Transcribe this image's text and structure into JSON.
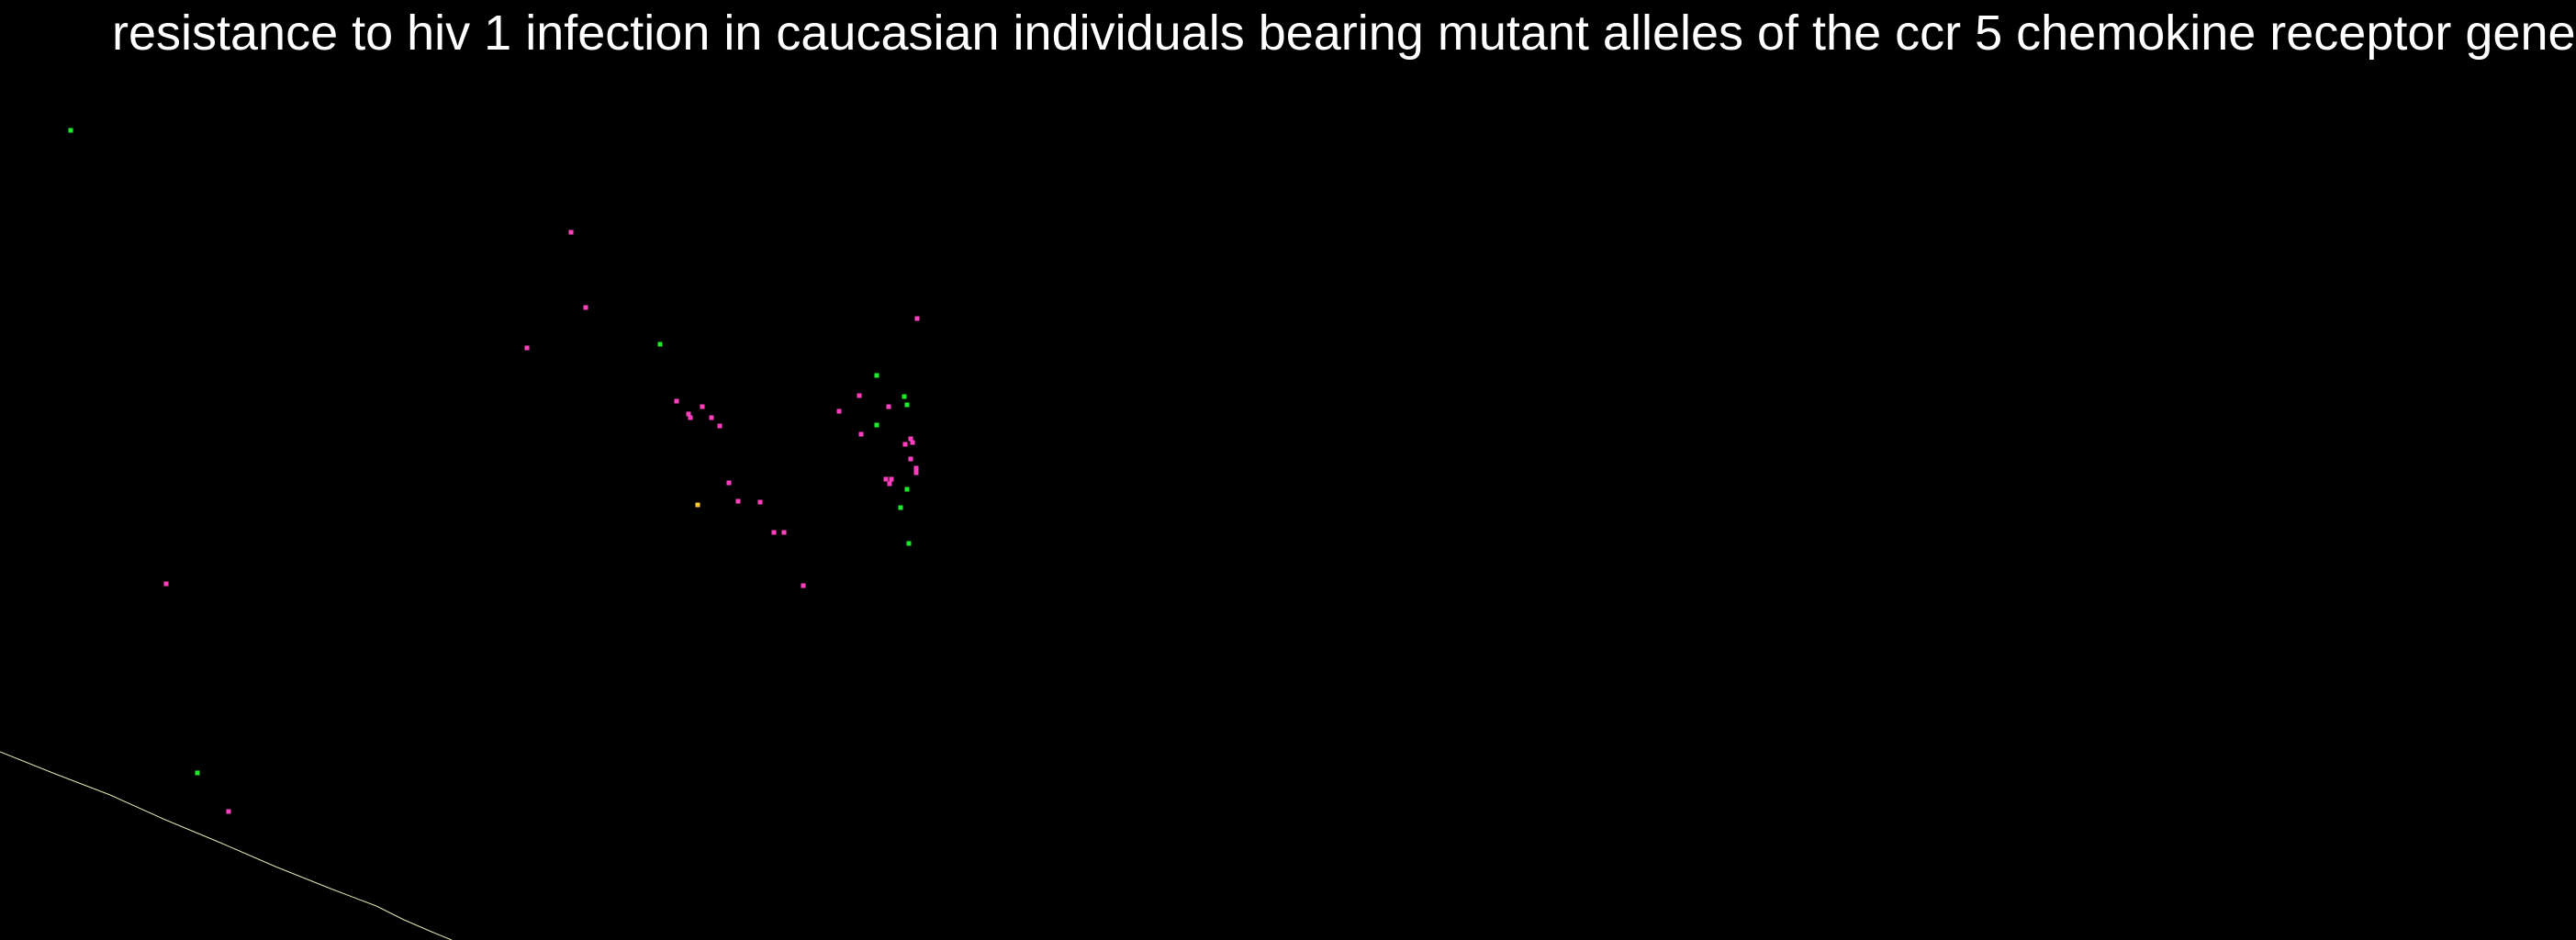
{
  "chart_data": {
    "type": "scatter",
    "title": "resistance to hiv 1 infection in caucasian individuals bearing mutant alleles of the ccr 5 chemokine receptor gene",
    "xlabel": "",
    "ylabel": "",
    "xlim": [
      0,
      1024
    ],
    "ylim": [
      0,
      1024
    ],
    "grid": false,
    "legend": "none",
    "colors": {
      "background": "#000000",
      "title": "#ffffff",
      "pink": "#ff3fbf",
      "green": "#1eea2c",
      "yellow": "#ffcc33",
      "curve": "#e6e6b4"
    },
    "series": [
      {
        "color": "#ff3fbf",
        "points": [
          [
            622,
            771
          ],
          [
            638,
            689
          ],
          [
            574,
            645
          ],
          [
            181,
            388
          ],
          [
            249,
            140
          ],
          [
            737,
            587
          ],
          [
            750,
            573
          ],
          [
            752,
            569
          ],
          [
            765,
            581
          ],
          [
            775,
            569
          ],
          [
            784,
            560
          ],
          [
            794,
            498
          ],
          [
            804,
            478
          ],
          [
            828,
            477
          ],
          [
            843,
            444
          ],
          [
            854,
            444
          ],
          [
            875,
            386
          ],
          [
            914,
            576
          ],
          [
            936,
            593
          ],
          [
            938,
            551
          ],
          [
            968,
            581
          ],
          [
            999,
            677
          ],
          [
            986,
            540
          ],
          [
            992,
            546
          ],
          [
            994,
            542
          ],
          [
            992,
            524
          ],
          [
            998,
            514
          ],
          [
            998,
            509
          ],
          [
            965,
            502
          ],
          [
            971,
            502
          ],
          [
            969,
            497
          ]
        ]
      },
      {
        "color": "#1eea2c",
        "points": [
          [
            77,
            882
          ],
          [
            215,
            182
          ],
          [
            719,
            649
          ],
          [
            955,
            615
          ],
          [
            985,
            592
          ],
          [
            988,
            583
          ],
          [
            955,
            561
          ],
          [
            988,
            491
          ],
          [
            981,
            471
          ],
          [
            990,
            432
          ]
        ]
      },
      {
        "color": "#ffcc33",
        "points": [
          [
            760,
            474
          ]
        ]
      }
    ],
    "curve": {
      "color": "#e6e6b4",
      "points": [
        [
          0,
          205
        ],
        [
          60,
          181
        ],
        [
          120,
          158
        ],
        [
          180,
          131
        ],
        [
          240,
          106
        ],
        [
          300,
          80
        ],
        [
          360,
          56
        ],
        [
          410,
          37
        ],
        [
          440,
          22
        ],
        [
          470,
          9
        ],
        [
          492,
          0
        ]
      ]
    }
  }
}
